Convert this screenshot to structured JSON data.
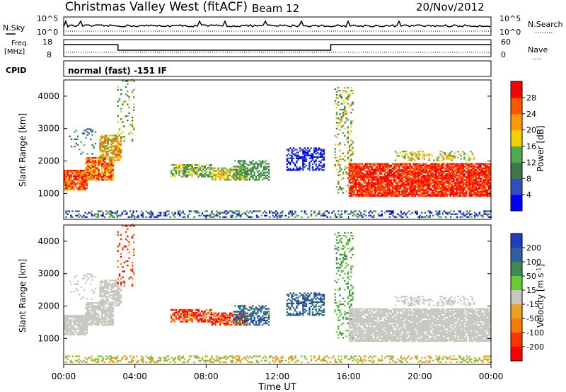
{
  "header": {
    "title": "Christmas Valley West (fitACF)",
    "beam": "Beam 12",
    "date": "20/Nov/2012",
    "mode": "normal (fast) -151 IF"
  },
  "labels": {
    "nsky": "N.Sky",
    "nsearch": "N.Search",
    "nsearch_style": "........",
    "freq": "Freq.",
    "freq_unit": "[MHz]",
    "nave": "Nave",
    "nave_style": "....",
    "cpid": "CPID",
    "nsky_tick_top": "10^5",
    "nsky_tick_bottom": "10^0",
    "nsearch_tick_top": "10^5",
    "nsearch_tick_bottom": "10^0",
    "freq_tick_top": "18",
    "freq_tick_bottom": "8",
    "nave_tick_top": "60",
    "nave_tick_bottom": "0"
  },
  "colors": {
    "power_scale": [
      "#0000ff",
      "#2f4fbf",
      "#3d7a4a",
      "#4faa50",
      "#f5d000",
      "#ff9900",
      "#ff5500",
      "#ff0000"
    ],
    "velocity_scale": [
      "#1d3fbf",
      "#2e5fa0",
      "#3d8a50",
      "#66cc33",
      "#c8c8c0",
      "#f0a020",
      "#ff7a00",
      "#ff3300",
      "#ff0000"
    ],
    "ground_scatter": "#c8c8c0"
  },
  "chart_data": [
    {
      "type": "heatmap",
      "title": "Power",
      "ylabel": "Slant Range [km]",
      "xlabel": "",
      "x_ticks": [
        "00:00",
        "04:00",
        "08:00",
        "12:00",
        "16:00",
        "20:00",
        "00:00"
      ],
      "y_ticks": [
        "1000",
        "2000",
        "3000",
        "4000"
      ],
      "ylim": [
        200,
        4500
      ],
      "xlim_hours": [
        0,
        24
      ],
      "colorbar": {
        "label": "Power [dB]",
        "ticks": [
          "4",
          "8",
          "12",
          "16",
          "20",
          "24",
          "28"
        ]
      }
    },
    {
      "type": "heatmap",
      "title": "Velocity",
      "ylabel": "Slant Range [km]",
      "xlabel": "Time UT",
      "x_ticks": [
        "00:00",
        "04:00",
        "08:00",
        "12:00",
        "16:00",
        "20:00",
        "00:00"
      ],
      "y_ticks": [
        "1000",
        "2000",
        "3000",
        "4000"
      ],
      "ylim": [
        200,
        4500
      ],
      "xlim_hours": [
        0,
        24
      ],
      "colorbar": {
        "label": "Velocity [m s^-1]",
        "ticks": [
          "200",
          "100",
          "50",
          "15",
          "-15",
          "-50",
          "-100",
          "-200"
        ]
      }
    }
  ]
}
